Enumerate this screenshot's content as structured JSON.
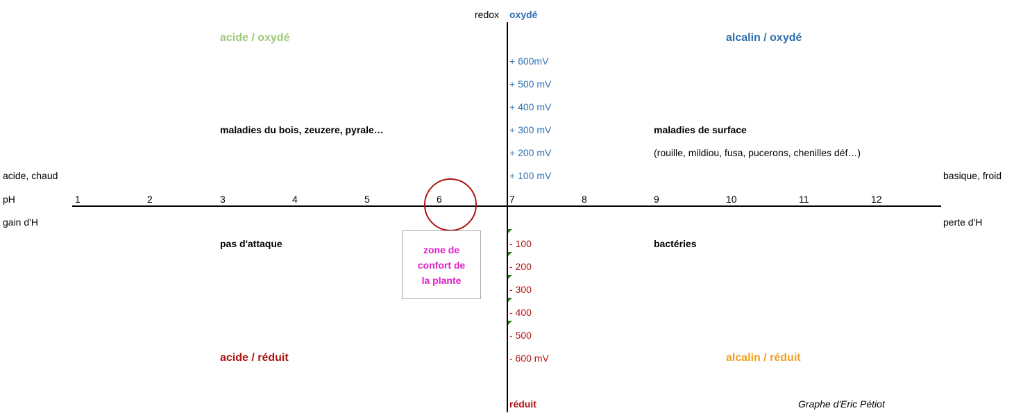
{
  "colors": {
    "green": "#9cc87a",
    "blue": "#2e6fae",
    "dark_red": "#b01010",
    "orange": "#f0a020",
    "magenta": "#e020c8",
    "tick_green": "#2f7a1f"
  },
  "top": {
    "redox_label": "redox",
    "oxidized_label": "oxydé"
  },
  "bottom": {
    "reduced_label": "réduit",
    "signature": "Graphe d'Eric Pétiot"
  },
  "quadrants": {
    "top_left": "acide / oxydé",
    "top_right": "alcalin / oxydé",
    "bottom_left": "acide / réduit",
    "bottom_right": "alcalin / réduit"
  },
  "notes": {
    "top_left": "maladies du bois, zeuzere, pyrale…",
    "top_right_title": "maladies de surface",
    "top_right_detail": "(rouille, mildiou, fusa, pucerons, chenilles déf…)",
    "bottom_left": "pas d'attaque",
    "bottom_right": "bactéries"
  },
  "left_labels": {
    "acid_hot": "acide, chaud",
    "ph": "pH",
    "gain": "gain d'H"
  },
  "right_labels": {
    "basic_cold": "basique, froid",
    "loss": "perte d'H"
  },
  "ph_ticks": [
    "1",
    "2",
    "3",
    "4",
    "5",
    "6",
    "7",
    "8",
    "9",
    "10",
    "11",
    "12"
  ],
  "redox_positive": [
    "+ 600mV",
    "+ 500 mV",
    "+ 400 mV",
    "+ 300 mV",
    "+ 200 mV",
    "+ 100 mV"
  ],
  "redox_negative": [
    "- 100",
    "- 200",
    "- 300",
    "- 400",
    "- 500",
    "- 600 mV"
  ],
  "comfort_zone": "zone de\nconfort de\nla plante",
  "highlighted_ph": "6"
}
